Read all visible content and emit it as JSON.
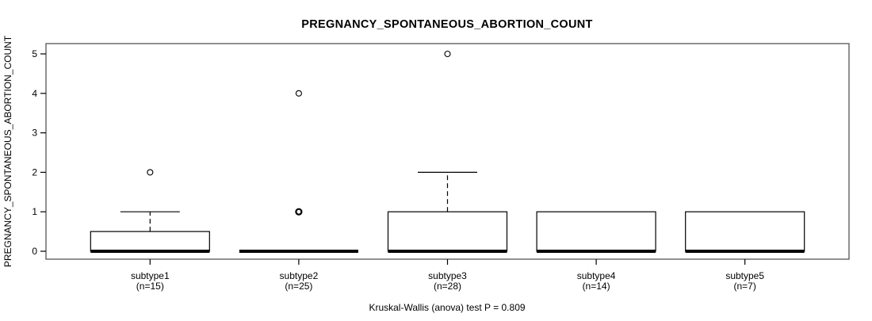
{
  "figure": {
    "background": "#ffffff"
  },
  "chart_data": {
    "type": "boxplot",
    "title": "PREGNANCY_SPONTANEOUS_ABORTION_COUNT",
    "ylabel": "PREGNANCY_SPONTANEOUS_ABORTION_COUNT",
    "xlabel": "",
    "caption": "Kruskal-Wallis (anova) test P = 0.809",
    "ylim": [
      0,
      5
    ],
    "yticks": [
      0,
      1,
      2,
      3,
      4,
      5
    ],
    "grid": false,
    "legend": null,
    "categories": [
      "subtype1",
      "subtype2",
      "subtype3",
      "subtype4",
      "subtype5"
    ],
    "category_counts": [
      "(n=15)",
      "(n=25)",
      "(n=28)",
      "(n=14)",
      "(n=7)"
    ],
    "series": [
      {
        "name": "subtype1",
        "n": 15,
        "whisker_low": 0,
        "q1": 0,
        "median": 0,
        "q3": 0.5,
        "whisker_high": 1,
        "outliers": [
          2
        ]
      },
      {
        "name": "subtype2",
        "n": 25,
        "whisker_low": 0,
        "q1": 0,
        "median": 0,
        "q3": 0,
        "whisker_high": 0,
        "outliers": [
          1,
          1,
          4
        ]
      },
      {
        "name": "subtype3",
        "n": 28,
        "whisker_low": 0,
        "q1": 0,
        "median": 0,
        "q3": 1,
        "whisker_high": 2,
        "outliers": [
          5
        ]
      },
      {
        "name": "subtype4",
        "n": 14,
        "whisker_low": 0,
        "q1": 0,
        "median": 0,
        "q3": 1,
        "whisker_high": 1,
        "outliers": []
      },
      {
        "name": "subtype5",
        "n": 7,
        "whisker_low": 0,
        "q1": 0,
        "median": 0,
        "q3": 1,
        "whisker_high": 1,
        "outliers": []
      }
    ],
    "colors": {
      "background": "#ffffff",
      "box_fill": "#ffffff",
      "line": "#000000",
      "frame": "#555555",
      "text": "#000000"
    }
  }
}
